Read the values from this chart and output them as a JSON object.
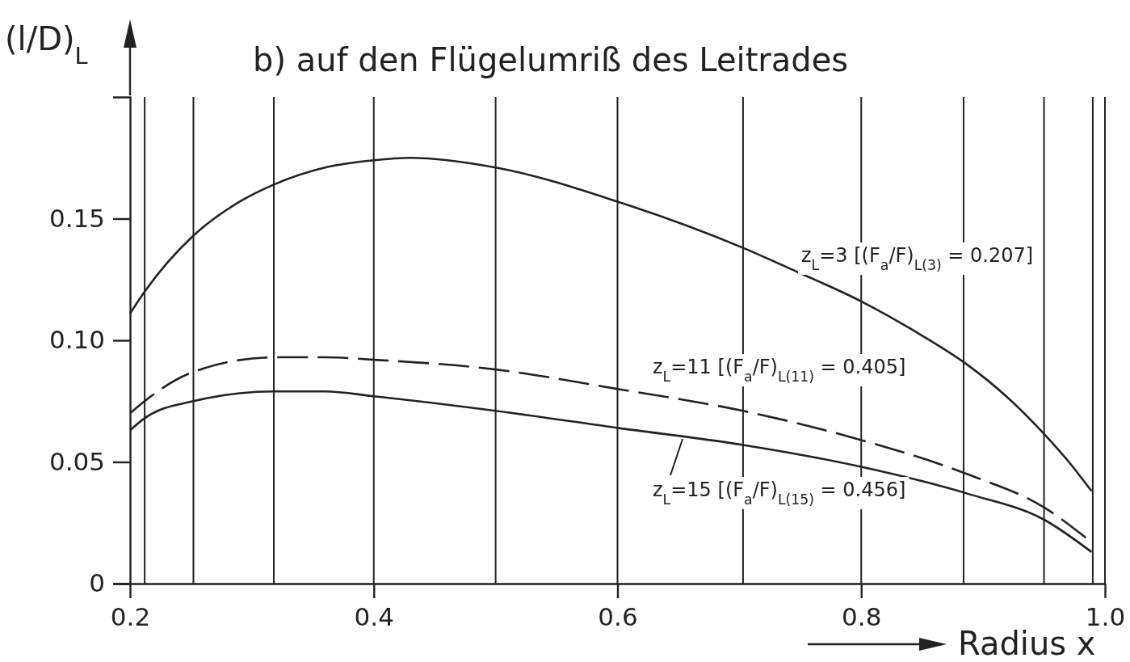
{
  "chart_data": {
    "type": "line",
    "title": "b) auf den Flügelumriß des Leitrades",
    "xlabel": "Radius x",
    "ylabel": "(l/D)$_{L}$",
    "series": [
      {
        "name": "z$_{L}$=3 [(F$_{a}$/F)$_{L(3)}$ = 0.207]",
        "color": "#222222",
        "line_style": "solid",
        "x": [
          0.2,
          0.212,
          0.252,
          0.29,
          0.318,
          0.36,
          0.4,
          0.43,
          0.5,
          0.6,
          0.703,
          0.748,
          0.8,
          0.843,
          0.887,
          0.919,
          0.951,
          0.972,
          0.989
        ],
        "values": [
          0.111,
          0.12,
          0.143,
          0.157,
          0.164,
          0.171,
          0.174,
          0.175,
          0.171,
          0.157,
          0.138,
          0.128,
          0.116,
          0.104,
          0.09,
          0.077,
          0.061,
          0.049,
          0.038
        ]
      },
      {
        "name": "z$_{L}$=11 [(F$_{a}$/F)$_{L(11)}$ = 0.405]",
        "color": "#222222",
        "line_style": "dashed",
        "x": [
          0.2,
          0.212,
          0.252,
          0.318,
          0.36,
          0.4,
          0.5,
          0.6,
          0.703,
          0.8,
          0.887,
          0.951,
          0.989
        ],
        "values": [
          0.07,
          0.075,
          0.087,
          0.093,
          0.093,
          0.092,
          0.088,
          0.08,
          0.071,
          0.059,
          0.045,
          0.031,
          0.017
        ]
      },
      {
        "name": "z$_{L}$=15 [(F$_{a}$/F)$_{L(15)}$ = 0.456]",
        "color": "#222222",
        "line_style": "solid",
        "x": [
          0.2,
          0.212,
          0.252,
          0.318,
          0.36,
          0.4,
          0.5,
          0.6,
          0.703,
          0.8,
          0.887,
          0.951,
          0.989
        ],
        "values": [
          0.063,
          0.068,
          0.075,
          0.079,
          0.079,
          0.077,
          0.071,
          0.064,
          0.057,
          0.048,
          0.037,
          0.026,
          0.013
        ]
      }
    ],
    "xlim": [
      0.2,
      1.0
    ],
    "ylim": [
      0,
      0.2
    ],
    "xticks": [
      0.2,
      0.4,
      0.6,
      0.8,
      {
        "value": 1,
        "label": "1.0"
      }
    ],
    "yticks": [
      0,
      0.05,
      {
        "value": 0.1,
        "label": "0.10"
      },
      0.15
    ],
    "ref_lines": [
      {
        "axis": "x",
        "value": 0.212
      },
      {
        "axis": "x",
        "value": 0.252
      },
      {
        "axis": "x",
        "value": 0.318
      },
      {
        "axis": "x",
        "value": 0.4
      },
      {
        "axis": "x",
        "value": 0.5
      },
      {
        "axis": "x",
        "value": 0.6
      },
      {
        "axis": "x",
        "value": 0.703
      },
      {
        "axis": "x",
        "value": 0.8
      },
      {
        "axis": "x",
        "value": 0.884
      },
      {
        "axis": "x",
        "value": 0.95
      },
      {
        "axis": "x",
        "value": 0.99
      }
    ]
  }
}
